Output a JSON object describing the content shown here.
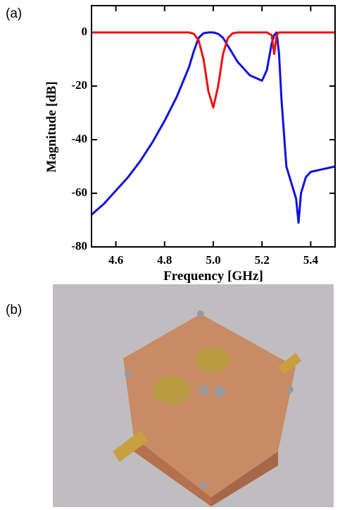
{
  "panel_labels": [
    "(a)",
    "(b)"
  ],
  "chart_data": {
    "type": "line",
    "x_label": "Frequency [GHz]",
    "y_label": "Magnitude [dB]",
    "x": [
      4.5,
      4.55,
      4.6,
      4.65,
      4.7,
      4.75,
      4.8,
      4.85,
      4.9,
      4.92,
      4.94,
      4.96,
      4.98,
      5.0,
      5.02,
      5.04,
      5.06,
      5.08,
      5.1,
      5.15,
      5.2,
      5.22,
      5.24,
      5.25,
      5.26,
      5.27,
      5.28,
      5.3,
      5.32,
      5.34,
      5.35,
      5.36,
      5.38,
      5.4,
      5.45,
      5.5
    ],
    "series": [
      {
        "color": "#1010e0",
        "values": [
          -68,
          -64,
          -59,
          -54,
          -48,
          -41,
          -33,
          -24,
          -13,
          -7,
          -2,
          -0.3,
          0,
          0,
          -0.5,
          -2,
          -5,
          -8,
          -11,
          -16,
          -18,
          -14,
          -4,
          -1,
          0,
          -8,
          -25,
          -50,
          -56,
          -62,
          -71,
          -60,
          -54,
          -52,
          -51,
          -50
        ]
      },
      {
        "color": "#f01010",
        "values": [
          0,
          0,
          0,
          0,
          0,
          0,
          0,
          0,
          0,
          -0.5,
          -3,
          -10,
          -22,
          -28,
          -20,
          -8,
          -2,
          -0.3,
          0,
          0,
          0,
          0,
          -1,
          -8,
          -1,
          0,
          0,
          0,
          0,
          0,
          0,
          0,
          0,
          0,
          0,
          0
        ]
      }
    ],
    "xlim": [
      4.5,
      5.5
    ],
    "xticks": [
      4.6,
      4.8,
      {
        "value": 5,
        "label": "5.0"
      },
      5.2,
      5.4
    ],
    "ylim": [
      -80,
      10
    ],
    "yticks": [
      -80,
      -60,
      -40,
      -20,
      0
    ]
  }
}
